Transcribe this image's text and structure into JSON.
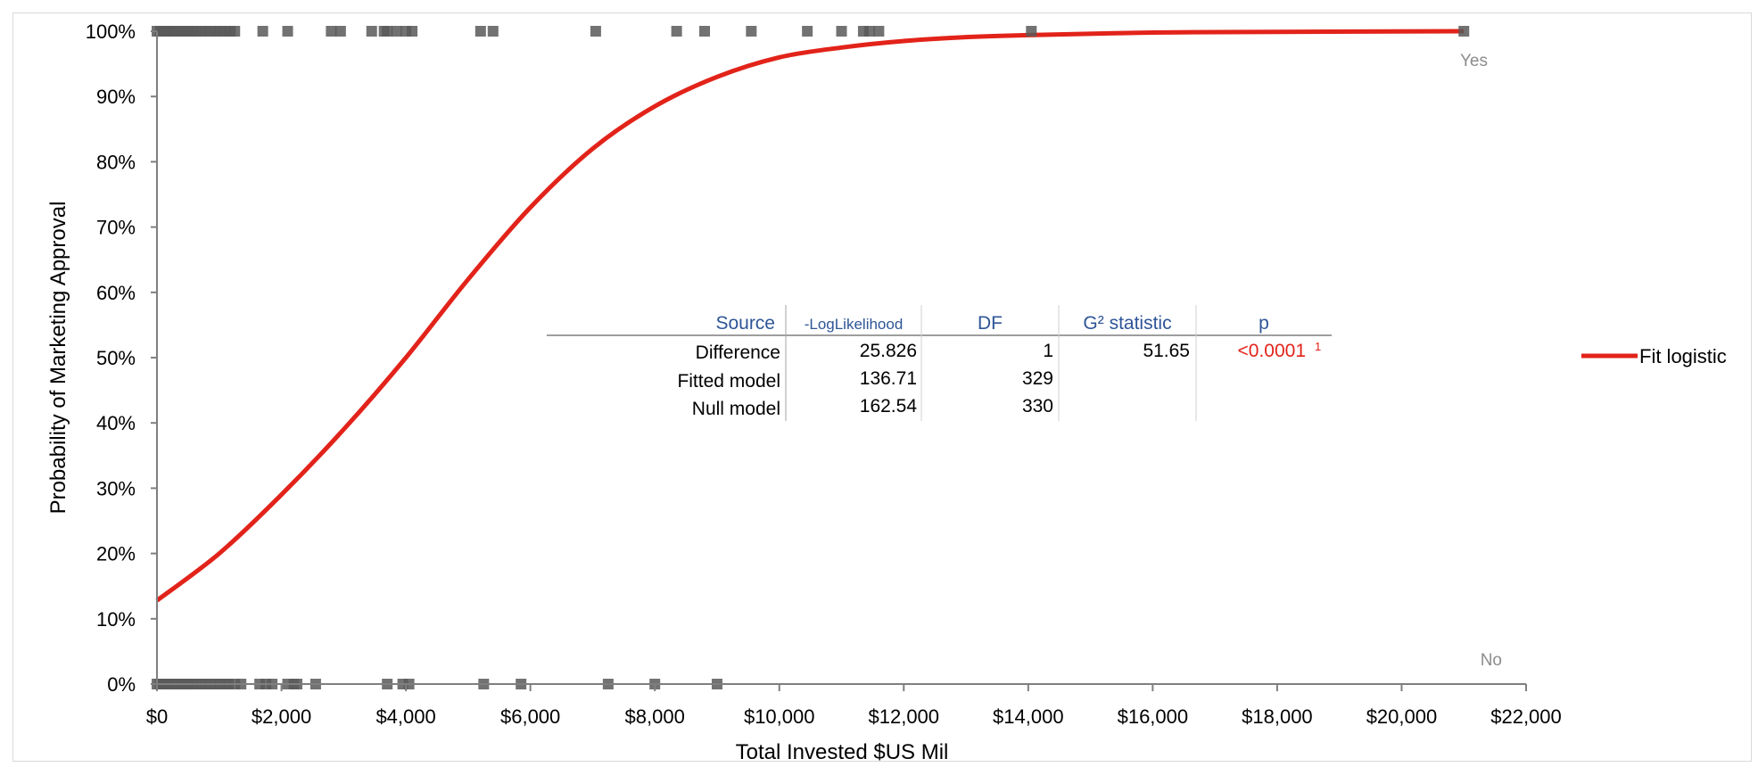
{
  "chart_data": {
    "type": "scatter",
    "xlabel": "Total Invested $US Mil",
    "ylabel": "Probability of Marketing Approval",
    "xlim": [
      0,
      22000
    ],
    "ylim": [
      0,
      1
    ],
    "x_ticks": [
      "$0",
      "$2,000",
      "$4,000",
      "$6,000",
      "$8,000",
      "$10,000",
      "$12,000",
      "$14,000",
      "$16,000",
      "$18,000",
      "$20,000",
      "$22,000"
    ],
    "y_ticks": [
      "0%",
      "10%",
      "20%",
      "30%",
      "40%",
      "50%",
      "60%",
      "70%",
      "80%",
      "90%",
      "100%"
    ],
    "outcome_labels": {
      "yes": "Yes",
      "no": "No"
    },
    "grid": false,
    "legend_position": "right",
    "series": [
      {
        "name": "Fit logistic",
        "type": "line",
        "color": "#e2231a",
        "x": [
          0,
          1000,
          2000,
          3000,
          4000,
          5000,
          6000,
          7000,
          8000,
          9000,
          10000,
          11000,
          12000,
          13000,
          14000,
          16000,
          18000,
          21000
        ],
        "values": [
          0.128,
          0.2,
          0.29,
          0.39,
          0.5,
          0.62,
          0.73,
          0.82,
          0.885,
          0.93,
          0.96,
          0.975,
          0.985,
          0.991,
          0.994,
          0.998,
          0.999,
          1.0
        ]
      }
    ],
    "points_yes": {
      "y": 1,
      "color": "#595959",
      "x": [
        0,
        50,
        100,
        150,
        200,
        260,
        320,
        380,
        440,
        500,
        560,
        620,
        700,
        780,
        860,
        940,
        1020,
        1100,
        1180,
        1250,
        1700,
        2100,
        2800,
        2950,
        3450,
        3650,
        3700,
        3850,
        4000,
        4100,
        5200,
        5400,
        7050,
        8350,
        8800,
        9550,
        10450,
        11000,
        11350,
        11450,
        11600,
        14050,
        21000
      ]
    },
    "points_no": {
      "y": 0,
      "color": "#595959",
      "x": [
        0,
        50,
        100,
        150,
        200,
        260,
        320,
        380,
        440,
        500,
        560,
        620,
        700,
        780,
        860,
        940,
        1020,
        1100,
        1150,
        1250,
        1350,
        1650,
        1750,
        1850,
        2100,
        2200,
        2250,
        2550,
        3700,
        3950,
        4050,
        5250,
        5850,
        7250,
        8000,
        9000
      ]
    },
    "stats_table": {
      "headers": [
        "Source",
        "-LogLikelihood",
        "DF",
        "G² statistic",
        "p"
      ],
      "rows": [
        [
          "Difference",
          "25.826",
          "1",
          "51.65",
          "<0.0001"
        ],
        [
          "Fitted model",
          "136.71",
          "329",
          "",
          ""
        ],
        [
          "Null model",
          "162.54",
          "330",
          "",
          ""
        ]
      ],
      "p_footnote": "1"
    }
  },
  "colors": {
    "fit_line": "#e2231a",
    "points": "#595959",
    "axis": "#7f7f7f",
    "table_header": "#2e5597",
    "table_red": "#e2231a"
  }
}
